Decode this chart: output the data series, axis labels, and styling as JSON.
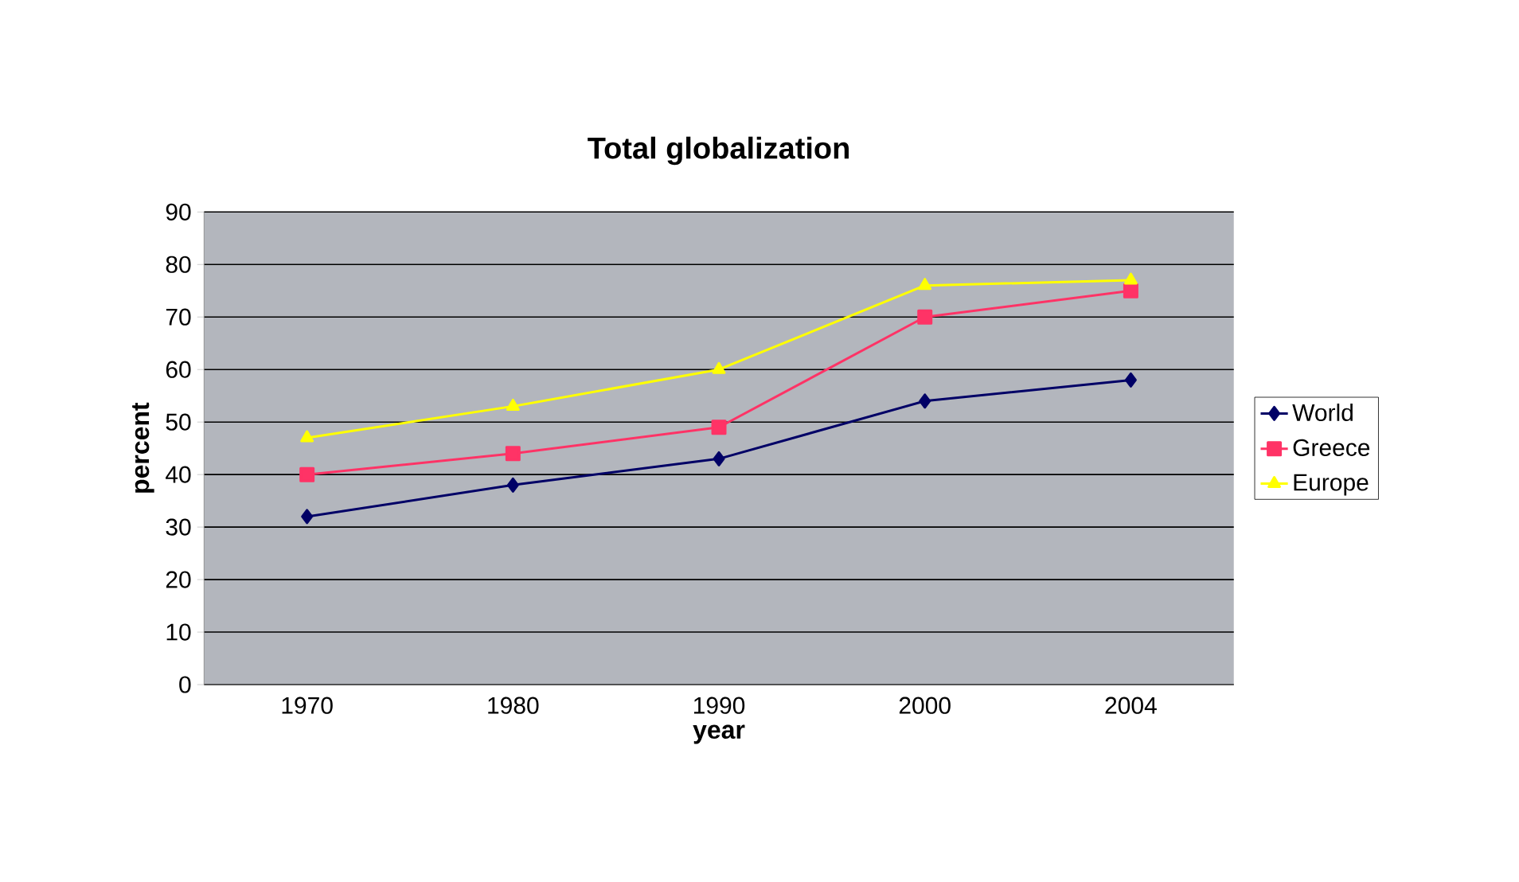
{
  "chart_data": {
    "type": "line",
    "title": "Total globalization",
    "xlabel": "year",
    "ylabel": "percent",
    "categories": [
      "1970",
      "1980",
      "1990",
      "2000",
      "2004"
    ],
    "series": [
      {
        "name": "World",
        "color": "#000066",
        "marker": "diamond",
        "values": [
          32,
          38,
          43,
          54,
          58
        ]
      },
      {
        "name": "Greece",
        "color": "#ff3366",
        "marker": "square",
        "values": [
          40,
          44,
          49,
          70,
          75
        ]
      },
      {
        "name": "Europe",
        "color": "#ffff00",
        "marker": "triangle",
        "values": [
          47,
          53,
          60,
          76,
          77
        ]
      }
    ],
    "ylim": [
      0,
      90
    ],
    "yticks": [
      0,
      10,
      20,
      30,
      40,
      50,
      60,
      70,
      80,
      90
    ],
    "grid": "y",
    "legend": "right",
    "line_style": "solid"
  }
}
